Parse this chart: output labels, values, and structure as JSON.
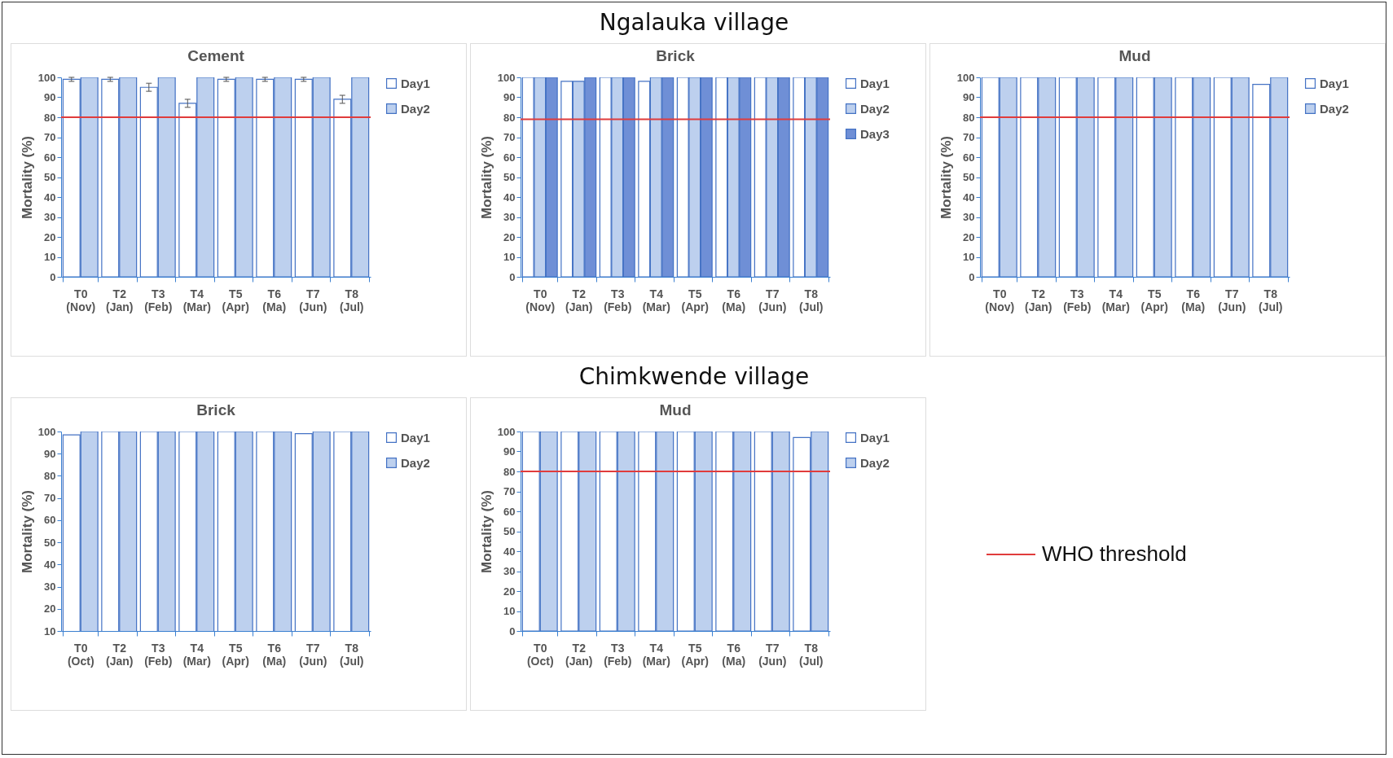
{
  "chart_data": [
    {
      "type": "bar",
      "title": "Cement",
      "ylabel": "Mortality (%)",
      "annotations": [
        "Ngalauka village"
      ],
      "categories": [
        "T0 (Nov)",
        "T2 (Jan)",
        "T3 (Feb)",
        "T4 (Mar)",
        "T5 (Apr)",
        "T6 (Ma)",
        "T7 (Jun)",
        "T8 (Jul)"
      ],
      "series": [
        {
          "name": "Day1",
          "color": "#ffffff",
          "values": [
            99,
            99,
            95,
            87,
            99,
            99,
            99,
            89
          ],
          "errors": [
            1,
            1,
            2,
            2,
            1,
            1,
            1,
            2
          ]
        },
        {
          "name": "Day2",
          "color": "#bdd0ee",
          "values": [
            100,
            100,
            100,
            100,
            100,
            100,
            100,
            100
          ]
        }
      ],
      "ylim": [
        0,
        100
      ],
      "yticks": [
        0,
        10,
        20,
        30,
        40,
        50,
        60,
        70,
        80,
        90,
        100
      ],
      "grid": false,
      "legend": "right",
      "ref_lines": [
        {
          "axis": "y",
          "value": 80,
          "color": "#e03c3c"
        }
      ]
    },
    {
      "type": "bar",
      "title": "Brick",
      "ylabel": "Mortality (%)",
      "categories": [
        "T0 (Nov)",
        "T2 (Jan)",
        "T3 (Feb)",
        "T4 (Mar)",
        "T5 (Apr)",
        "T6 (Ma)",
        "T7 (Jun)",
        "T8 (Jul)"
      ],
      "series": [
        {
          "name": "Day1",
          "color": "#ffffff",
          "values": [
            100,
            98,
            100,
            98,
            100,
            100,
            100,
            100
          ]
        },
        {
          "name": "Day2",
          "color": "#bdd0ee",
          "values": [
            100,
            98,
            100,
            100,
            100,
            100,
            100,
            100
          ]
        },
        {
          "name": "Day3",
          "color": "#6f8fd6",
          "values": [
            100,
            100,
            100,
            100,
            100,
            100,
            100,
            100
          ]
        }
      ],
      "ylim": [
        0,
        100
      ],
      "yticks": [
        0,
        10,
        20,
        30,
        40,
        50,
        60,
        70,
        80,
        90,
        100
      ],
      "grid": false,
      "legend": "right",
      "ref_lines": [
        {
          "axis": "y",
          "value": 79,
          "color": "#e03c3c"
        }
      ]
    },
    {
      "type": "bar",
      "title": "Mud",
      "ylabel": "Mortality (%)",
      "categories": [
        "T0 (Nov)",
        "T2 (Jan)",
        "T3 (Feb)",
        "T4 (Mar)",
        "T5 (Apr)",
        "T6 (Ma)",
        "T7 (Jun)",
        "T8 (Jul)"
      ],
      "series": [
        {
          "name": "Day1",
          "color": "#ffffff",
          "values": [
            100,
            100,
            100,
            100,
            100,
            100,
            100,
            96.5
          ]
        },
        {
          "name": "Day2",
          "color": "#bdd0ee",
          "values": [
            100,
            100,
            100,
            100,
            100,
            100,
            100,
            100
          ]
        }
      ],
      "ylim": [
        0,
        100
      ],
      "yticks": [
        0,
        10,
        20,
        30,
        40,
        50,
        60,
        70,
        80,
        90,
        100
      ],
      "grid": false,
      "legend": "right",
      "ref_lines": [
        {
          "axis": "y",
          "value": 80,
          "color": "#e03c3c"
        }
      ]
    },
    {
      "type": "bar",
      "title": "Brick",
      "ylabel": "Mortality (%)",
      "annotations": [
        "Chimkwende village"
      ],
      "categories": [
        "T0 (Oct)",
        "T2 (Jan)",
        "T3 (Feb)",
        "T4 (Mar)",
        "T5 (Apr)",
        "T6 (Ma)",
        "T7 (Jun)",
        "T8 (Jul)"
      ],
      "series": [
        {
          "name": "Day1",
          "color": "#ffffff",
          "values": [
            98.5,
            100,
            100,
            100,
            100,
            100,
            99,
            100
          ]
        },
        {
          "name": "Day2",
          "color": "#bdd0ee",
          "values": [
            100,
            100,
            100,
            100,
            100,
            100,
            100,
            100
          ]
        }
      ],
      "ylim": [
        10,
        100
      ],
      "yticks": [
        10,
        20,
        30,
        40,
        50,
        60,
        70,
        80,
        90,
        100
      ],
      "grid": false,
      "legend": "right"
    },
    {
      "type": "bar",
      "title": "Mud",
      "ylabel": "Mortality (%)",
      "categories": [
        "T0 (Oct)",
        "T2 (Jan)",
        "T3 (Feb)",
        "T4 (Mar)",
        "T5 (Apr)",
        "T6 (Ma)",
        "T7 (Jun)",
        "T8 (Jul)"
      ],
      "series": [
        {
          "name": "Day1",
          "color": "#ffffff",
          "values": [
            100,
            100,
            100,
            100,
            100,
            100,
            100,
            97
          ]
        },
        {
          "name": "Day2",
          "color": "#bdd0ee",
          "values": [
            100,
            100,
            100,
            100,
            100,
            100,
            100,
            100
          ]
        }
      ],
      "ylim": [
        0,
        100
      ],
      "yticks": [
        0,
        10,
        20,
        30,
        40,
        50,
        60,
        70,
        80,
        90,
        100
      ],
      "grid": false,
      "legend": "right",
      "ref_lines": [
        {
          "axis": "y",
          "value": 80,
          "color": "#e03c3c",
          "label": "WHO threshold"
        }
      ]
    }
  ]
}
